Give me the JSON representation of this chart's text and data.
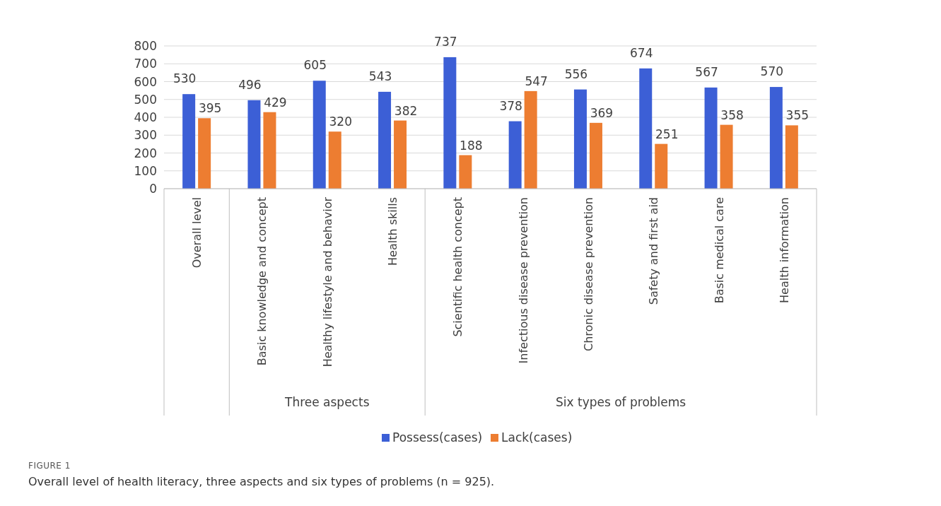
{
  "chart_data": {
    "type": "bar",
    "categories": [
      "Overall level",
      "Basic knowledge and concept",
      "Healthy lifestyle and behavior",
      "Health skills",
      "Scientific health concept",
      "Infectious disease prevention",
      "Chronic disease prevention",
      "Safety and first aid",
      "Basic medical care",
      "Health information"
    ],
    "series": [
      {
        "name": "Possess(cases)",
        "color": "#3c5fd6",
        "values": [
          530,
          496,
          605,
          543,
          737,
          378,
          556,
          674,
          567,
          570
        ]
      },
      {
        "name": "Lack(cases)",
        "color": "#ed7d31",
        "values": [
          395,
          429,
          320,
          382,
          188,
          547,
          369,
          251,
          358,
          355
        ]
      }
    ],
    "ylim": [
      0,
      800
    ],
    "yticks": [
      0,
      100,
      200,
      300,
      400,
      500,
      600,
      700,
      800
    ],
    "grid": "y",
    "legend": "bottom",
    "data_labels": true,
    "annotations": [
      "Three aspects",
      "Six types of problems",
      "FIGURE 1",
      "Overall level of health literacy, three aspects and six types of problems (n = 925)."
    ]
  }
}
